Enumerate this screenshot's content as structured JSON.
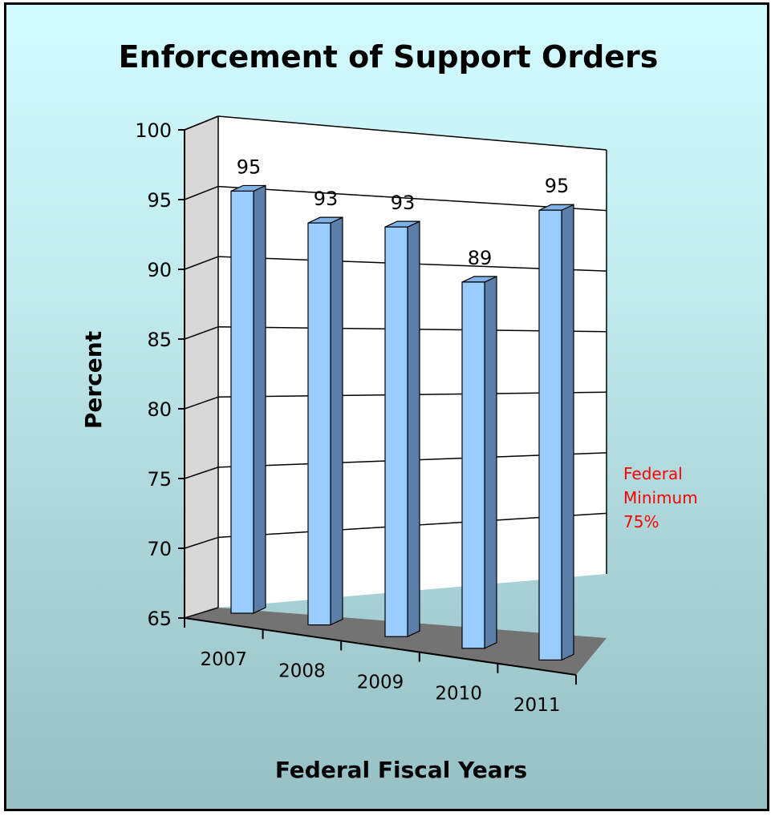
{
  "chart_data": {
    "type": "bar",
    "title": "Enforcement of Support Orders",
    "xlabel": "Federal Fiscal Years",
    "ylabel": "Percent",
    "categories": [
      "2007",
      "2008",
      "2009",
      "2010",
      "2011"
    ],
    "values": [
      95,
      93,
      93,
      89,
      95
    ],
    "ylim": [
      65,
      100
    ],
    "yticks": [
      65,
      70,
      75,
      80,
      85,
      90,
      95,
      100
    ],
    "grid": true,
    "style": "3d-column",
    "bar_color": "#99ccff",
    "annotation": {
      "lines": [
        "Federal",
        "Minimum",
        "75%"
      ],
      "color": "#ff0000"
    }
  }
}
